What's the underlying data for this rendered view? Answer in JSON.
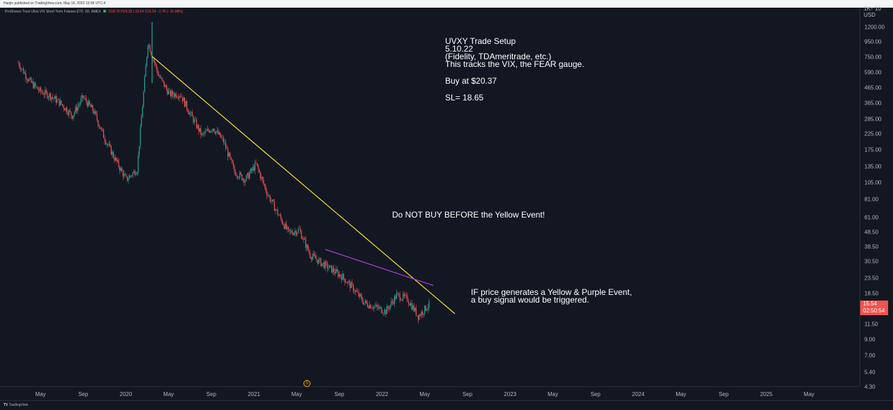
{
  "header": {
    "published": "Hanjin published on TradingView.com, May 16, 2022 13:09 UTC-4",
    "legend_title": "ProShares Trust Ultra VIX Short Term Futures ETF, 3D, AMEX",
    "legend_values": "O18.75 H19.35 L15.54 C15.54",
    "legend_change": "−2.76 (−15.08%)"
  },
  "price_axis": {
    "currency": "USD",
    "top_label": "1K↑ 10",
    "last_price": "15.54",
    "countdown": "02:50:54"
  },
  "annotations": {
    "setup_lines": [
      "UVXY Trade Setup",
      "5.10.22",
      "(Fidelity, TDAmeritrade, etc.)",
      "This tracks the VIX, the FEAR gauge."
    ],
    "buy": "Buy at $20.37",
    "sl": "SL= 18.65",
    "warning": "Do NOT BUY BEFORE the Yellow Event!",
    "if_lines": [
      "IF price generates a Yellow & Purple Event,",
      "a buy signal would be triggered."
    ]
  },
  "event_marker": "S",
  "footer": {
    "brand": "TradingView"
  },
  "colors": {
    "background": "#131722",
    "up": "#26a69a",
    "down": "#ef5350",
    "yellow_trendline": "#f5e335",
    "purple_trendline": "#b03fd6"
  },
  "chart_data": {
    "type": "candlestick",
    "symbol": "UVXY",
    "timeframe": "3D",
    "y_scale": "log",
    "y_ticks": [
      1200,
      950,
      750,
      590,
      465,
      365,
      285,
      225,
      175,
      135,
      105,
      81,
      61,
      48.5,
      38.5,
      30.5,
      23.5,
      18.5,
      11.5,
      9,
      7,
      5.4,
      4.3
    ],
    "y_tick_labels": [
      "1200.00",
      "950.00",
      "750.00",
      "590.00",
      "465.00",
      "365.00",
      "285.00",
      "225.00",
      "175.00",
      "135.00",
      "105.00",
      "81.00",
      "61.00",
      "48.50",
      "38.50",
      "30.50",
      "23.50",
      "18.50",
      "11.50",
      "9.00",
      "7.00",
      "5.40",
      "4.30"
    ],
    "x_ticks": [
      "May",
      "Sep",
      "2020",
      "May",
      "Sep",
      "2021",
      "May",
      "Sep",
      "2022",
      "May",
      "Sep",
      "2023",
      "May",
      "Sep",
      "2024",
      "May",
      "Sep",
      "2025",
      "May"
    ],
    "price_path": [
      {
        "date": "2019-03",
        "price": 690
      },
      {
        "date": "2019-04",
        "price": 520
      },
      {
        "date": "2019-05",
        "price": 440
      },
      {
        "date": "2019-06",
        "price": 410
      },
      {
        "date": "2019-07",
        "price": 360
      },
      {
        "date": "2019-08",
        "price": 300
      },
      {
        "date": "2019-09",
        "price": 400
      },
      {
        "date": "2019-10",
        "price": 320
      },
      {
        "date": "2019-11",
        "price": 210
      },
      {
        "date": "2019-12",
        "price": 150
      },
      {
        "date": "2020-01",
        "price": 110
      },
      {
        "date": "2020-02",
        "price": 130
      },
      {
        "date": "2020-03",
        "price": 950
      },
      {
        "date": "2020-04",
        "price": 560
      },
      {
        "date": "2020-05",
        "price": 420
      },
      {
        "date": "2020-06",
        "price": 420
      },
      {
        "date": "2020-07",
        "price": 300
      },
      {
        "date": "2020-08",
        "price": 220
      },
      {
        "date": "2020-09",
        "price": 250
      },
      {
        "date": "2020-10",
        "price": 200
      },
      {
        "date": "2020-11",
        "price": 125
      },
      {
        "date": "2020-12",
        "price": 110
      },
      {
        "date": "2021-01",
        "price": 140
      },
      {
        "date": "2021-02",
        "price": 90
      },
      {
        "date": "2021-03",
        "price": 65
      },
      {
        "date": "2021-04",
        "price": 48
      },
      {
        "date": "2021-05",
        "price": 50
      },
      {
        "date": "2021-06",
        "price": 34
      },
      {
        "date": "2021-07",
        "price": 30
      },
      {
        "date": "2021-08",
        "price": 27
      },
      {
        "date": "2021-09",
        "price": 24
      },
      {
        "date": "2021-10",
        "price": 20
      },
      {
        "date": "2021-11",
        "price": 16
      },
      {
        "date": "2021-12",
        "price": 15
      },
      {
        "date": "2022-01",
        "price": 14
      },
      {
        "date": "2022-02",
        "price": 18
      },
      {
        "date": "2022-03",
        "price": 17
      },
      {
        "date": "2022-04",
        "price": 13
      },
      {
        "date": "2022-05",
        "price": 15.54
      }
    ],
    "peak": {
      "date": "2020-03",
      "high": 1300
    },
    "trendlines": [
      {
        "name": "yellow",
        "from": {
          "date": "2020-03",
          "price": 760
        },
        "to": {
          "date": "2022-07",
          "price": 13.5
        }
      },
      {
        "name": "purple",
        "from": {
          "date": "2021-07",
          "price": 37
        },
        "to": {
          "date": "2022-05",
          "price": 21
        }
      }
    ],
    "last_price": 15.54
  }
}
